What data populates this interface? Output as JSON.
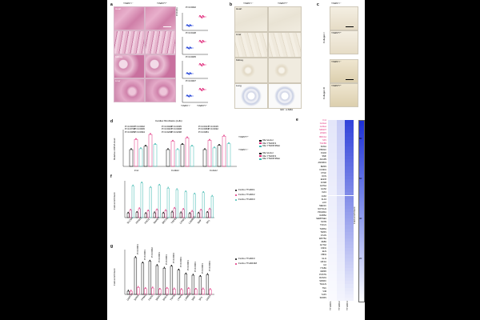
{
  "panel_a": {
    "label": "a",
    "col_headers": [
      "Ythdf3⁻/⁻",
      "Ythdf3⁺/⁺"
    ],
    "row_labels": [
      "Heart",
      "",
      "Kidney",
      "Liver"
    ],
    "pvalues": [
      "P=0.0002",
      "P=0.0428",
      "P=0.0005",
      "P=0.0007"
    ],
    "ylabel": "CVF(%)",
    "xlabels": [
      "Ythdf3⁻/⁻",
      "Ythdf3⁺/⁺"
    ]
  },
  "panel_b": {
    "label": "b",
    "col_headers": [
      "Ythdf3⁻/⁻",
      "Ythdf3⁺/⁺"
    ],
    "row_labels": [
      "Heart",
      "Liver",
      "Kidney",
      "Lung"
    ],
    "footer": "IHC: α-SMA"
  },
  "panel_c": {
    "label": "c",
    "col_label": "Ythdf3⁻/⁻",
    "rows": [
      "Ythdf3⁺/⁺",
      "Ythdf3⁻/⁻",
      "Ythdf3⁺/⁺"
    ],
    "side_labels": [
      "Collagen I",
      "Collagen III"
    ]
  },
  "panel_d": {
    "label": "d",
    "title": "Cardiac fibroblasts (cells)",
    "ylabel": "Relative mRNA level",
    "groups": [
      "Fn1",
      "Col3A1",
      "Col1A1"
    ],
    "legend_heading_1": "Ythdf3⁺/⁺",
    "legend_heading_2": "Ythdf3⁻/⁻",
    "legend_items": [
      "OE-Vector",
      "OE-YTHDF3",
      "OE-YTHDF3Mut",
      "OE-Vector",
      "OE-YTHDF3",
      "OE-YTHDF3Mut"
    ],
    "colors": [
      "#000000",
      "#e0297a",
      "#3fb8b0",
      "#000000",
      "#e0297a",
      "#3fb8b0"
    ],
    "pvalues": [
      "P=0.0037",
      "P=0.0002",
      "P=0.0708",
      "P=0.0006",
      "P=0.0083",
      "P=0.0094",
      "P=0.0020",
      "P=0.0035",
      "P=0.0027",
      "P=0.0008",
      "P=0.0208",
      "P=0.0298",
      "P=0.0017",
      "P=0.0015",
      "P=0.0063",
      "P=0.0032",
      "P=0.0081"
    ]
  },
  "panel_f": {
    "label": "f",
    "ylabel": "Fold enrichment",
    "categories": [
      "SLC8A",
      "PPM1C",
      "FGD2",
      "SMAD7",
      "BRCA1",
      "TGFB3",
      "LPAR1",
      "LAMB1C",
      "SMF",
      "SP1"
    ],
    "series": [
      {
        "name": "FLAG-YTHDF1",
        "color": "#000000",
        "values": [
          1.2,
          1.4,
          1.1,
          1.3,
          1.2,
          1.5,
          1.3,
          1.1,
          1.2,
          1.4
        ]
      },
      {
        "name": "FLAG-YTHDF2",
        "color": "#e0297a",
        "values": [
          2.0,
          2.4,
          1.8,
          2.1,
          1.9,
          2.5,
          2.2,
          1.7,
          2.0,
          2.3
        ]
      },
      {
        "name": "FLAG-YTHDF3",
        "color": "#3fb8b0",
        "values": [
          8.6,
          9.4,
          8.2,
          8.8,
          8.0,
          7.6,
          7.0,
          6.4,
          6.8,
          5.8
        ]
      }
    ],
    "ylim": [
      0,
      10
    ]
  },
  "panel_g": {
    "label": "g",
    "ylabel": "Fold enrichment",
    "categories": [
      "GAPDH",
      "SCNA",
      "PPM1C",
      "FGD2",
      "SMAD7",
      "BRCA1",
      "TGFB3",
      "LPAR1",
      "LAMB1C",
      "SMF",
      "SP1",
      "GAS4"
    ],
    "pvalues": [
      "P<0.0001",
      "P<0.0001",
      "P=0.0002",
      "P<0.0001",
      "P<0.0001",
      "P=0.0004",
      "P<0.0001",
      "P<0.0001",
      "P<0.0001",
      "P<0.0001",
      "P<0.0001"
    ],
    "series": [
      {
        "name": "FLAG-YTHDF3",
        "color": "#000000",
        "values": [
          1.0,
          11.5,
          9.8,
          10.4,
          9.0,
          8.2,
          8.8,
          7.6,
          6.4,
          6.0,
          5.6,
          6.2
        ]
      },
      {
        "name": "FLAG-YTHDF3M",
        "color": "#e0297a",
        "values": [
          1.0,
          2.2,
          1.8,
          2.0,
          1.6,
          1.9,
          1.7,
          1.5,
          1.8,
          1.6,
          1.7,
          1.5
        ]
      }
    ],
    "ylim": [
      0,
      14
    ]
  },
  "panel_e": {
    "label": "e",
    "colorbar_title": "Fold enrichment",
    "colorbar_ticks": [
      "80",
      "60",
      "40",
      "20"
    ],
    "columns": [
      "YTHDF1",
      "YTHDF2",
      "YTHDF3"
    ],
    "row_labels": [
      "Fn1",
      "Col1a1",
      "Col3a1",
      "SMAD7",
      "LPAR1",
      "BRCA1",
      "SP1",
      "TGFB3",
      "SCNA",
      "PPM1C",
      "FGD2",
      "SMF",
      "AKAP9",
      "ANKRD1",
      "BMP4",
      "CCND1",
      "CTGF",
      "DCN",
      "EGFR",
      "FOSB",
      "GATA4",
      "HAS2",
      "IGF1",
      "JAK2",
      "KLF4",
      "LOX",
      "MEF2C",
      "NOTCH1",
      "PDGFRA",
      "RAB5A",
      "SERPINE1",
      "SOX9",
      "TCF21",
      "THBS1",
      "TIMP1",
      "VCAN",
      "WNT5A",
      "ZEB1",
      "ACTA2",
      "CNN1",
      "ELN",
      "FBN1",
      "GLI1",
      "HIF1A",
      "IL6",
      "ITGB1",
      "MMP2",
      "POSTN",
      "RUNX1",
      "SPARC",
      "TAGLN",
      "TNC",
      "VIM",
      "YAP1",
      "SFRP1"
    ],
    "highlight_count": 8
  }
}
